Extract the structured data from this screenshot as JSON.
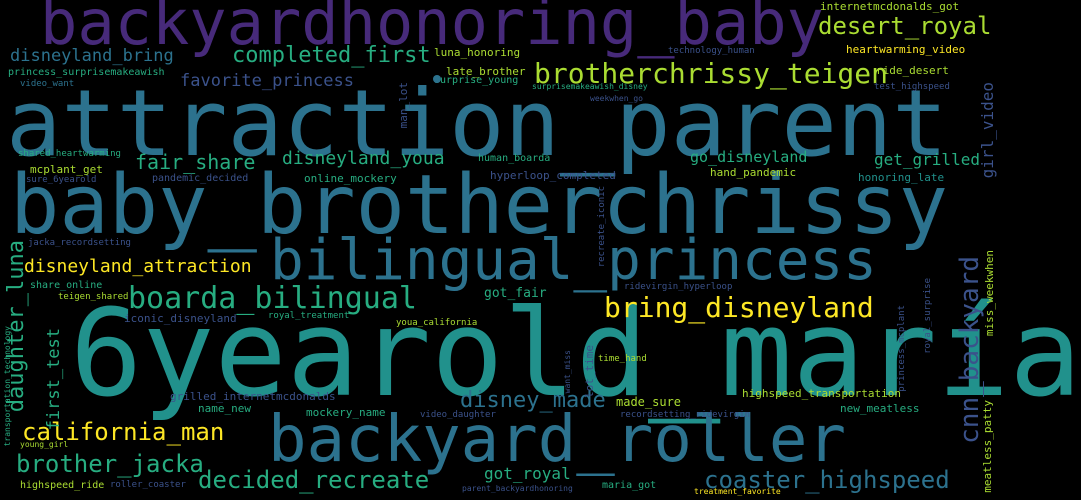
{
  "palette": {
    "background": "#000000",
    "purple": "#472a7a",
    "indigo": "#3b528b",
    "blue": "#2c728e",
    "teal": "#21918c",
    "green": "#27ad81",
    "lime": "#5dc863",
    "yellowgreen": "#aadc32",
    "yellow": "#fde725"
  },
  "words": [
    {
      "text": "backyardhonoring_baby",
      "color": "purple"
    },
    {
      "text": "attraction_parent",
      "color": "blue"
    },
    {
      "text": "baby_brotherchrissy",
      "color": "blue"
    },
    {
      "text": "bilingual_princess",
      "color": "blue"
    },
    {
      "text": "6yearold_maría",
      "color": "teal"
    },
    {
      "text": "backyard_roller",
      "color": "blue"
    },
    {
      "text": "desert_royal",
      "color": "yellowgreen"
    },
    {
      "text": "brotherchrissy_teigen",
      "color": "yellowgreen"
    },
    {
      "text": "completed_first",
      "color": "green"
    },
    {
      "text": "disneyland_bring",
      "color": "blue"
    },
    {
      "text": "boarda_bilingual",
      "color": "green"
    },
    {
      "text": "bring_disneyland",
      "color": "yellow"
    },
    {
      "text": "cnn_backyard",
      "color": "indigo"
    },
    {
      "text": "daughter_luna",
      "color": "green"
    },
    {
      "text": "disneyland_attraction",
      "color": "yellow"
    },
    {
      "text": "california_man",
      "color": "yellow"
    },
    {
      "text": "brother_jacka",
      "color": "green"
    },
    {
      "text": "decided_recreate",
      "color": "green"
    },
    {
      "text": "coaster_highspeed",
      "color": "blue"
    },
    {
      "text": "disney_made",
      "color": "blue"
    },
    {
      "text": "fair_share",
      "color": "green"
    },
    {
      "text": "disneyland_youa",
      "color": "green"
    },
    {
      "text": "go_disneyland",
      "color": "green"
    },
    {
      "text": "get_grilled",
      "color": "green"
    },
    {
      "text": "favorite_princess",
      "color": "indigo"
    },
    {
      "text": "first_test",
      "color": "green"
    },
    {
      "text": "girl_video",
      "color": "indigo"
    },
    {
      "text": "got_royal",
      "color": "green"
    },
    {
      "text": "internetmcdonalds_got",
      "color": "yellowgreen"
    },
    {
      "text": "heartwarming_video",
      "color": "yellow"
    },
    {
      "text": "princess_surprisemakeawish",
      "color": "green"
    },
    {
      "text": "luna_honoring",
      "color": "yellowgreen"
    },
    {
      "text": "late_brother",
      "color": "yellowgreen"
    },
    {
      "text": "surprise_young",
      "color": "green"
    },
    {
      "text": "surprisemakeawish_disney",
      "color": "green"
    },
    {
      "text": "technology_human",
      "color": "indigo"
    },
    {
      "text": "ride_desert",
      "color": "yellowgreen"
    },
    {
      "text": "video_want",
      "color": "blue"
    },
    {
      "text": "test_highspeed",
      "color": "indigo"
    },
    {
      "text": "weekwhen_go",
      "color": "indigo"
    },
    {
      "text": "man_lot",
      "color": "indigo"
    },
    {
      "text": "shared_heartwarming",
      "color": "green"
    },
    {
      "text": "mcplant_get",
      "color": "yellowgreen"
    },
    {
      "text": "sure_6yearold",
      "color": "indigo"
    },
    {
      "text": "pandemic_decided",
      "color": "indigo"
    },
    {
      "text": "online_mockery",
      "color": "green"
    },
    {
      "text": "human_boarda",
      "color": "green"
    },
    {
      "text": "hyperloop_completed",
      "color": "indigo"
    },
    {
      "text": "hand_pandemic",
      "color": "yellowgreen"
    },
    {
      "text": "honoring_late",
      "color": "teal"
    },
    {
      "text": "jacka_recordsetting",
      "color": "indigo"
    },
    {
      "text": "recreate_iconic",
      "color": "indigo"
    },
    {
      "text": "meatless_patty",
      "color": "yellowgreen"
    },
    {
      "text": "miss_weekwhen",
      "color": "yellowgreen"
    },
    {
      "text": "share_online",
      "color": "green"
    },
    {
      "text": "teigen_shared",
      "color": "yellowgreen"
    },
    {
      "text": "got_fair",
      "color": "green"
    },
    {
      "text": "ridevirgin_hyperloop",
      "color": "indigo"
    },
    {
      "text": "transportation_technology",
      "color": "green"
    },
    {
      "text": "iconic_disneyland",
      "color": "indigo"
    },
    {
      "text": "royal_treatment",
      "color": "green"
    },
    {
      "text": "youa_california",
      "color": "yellowgreen"
    },
    {
      "text": "lot_time",
      "color": "indigo"
    },
    {
      "text": "want_miss",
      "color": "indigo"
    },
    {
      "text": "time_hand",
      "color": "yellowgreen"
    },
    {
      "text": "princess_mcplant",
      "color": "indigo"
    },
    {
      "text": "royal_surprise",
      "color": "indigo"
    },
    {
      "text": "grilled_internetmcdonalds",
      "color": "indigo"
    },
    {
      "text": "name_new",
      "color": "green"
    },
    {
      "text": "mockery_name",
      "color": "green"
    },
    {
      "text": "made_sure",
      "color": "yellowgreen"
    },
    {
      "text": "video_daughter",
      "color": "indigo"
    },
    {
      "text": "recordsetting_ridevirgin",
      "color": "indigo"
    },
    {
      "text": "highspeed_transportation",
      "color": "yellowgreen"
    },
    {
      "text": "new_meatless",
      "color": "green"
    },
    {
      "text": "young_girl",
      "color": "yellowgreen"
    },
    {
      "text": "highspeed_ride",
      "color": "yellowgreen"
    },
    {
      "text": "roller_coaster",
      "color": "indigo"
    },
    {
      "text": "parent_backyardhonoring",
      "color": "indigo"
    },
    {
      "text": "maria_got",
      "color": "green"
    },
    {
      "text": "treatment_favorite",
      "color": "yellow"
    }
  ]
}
